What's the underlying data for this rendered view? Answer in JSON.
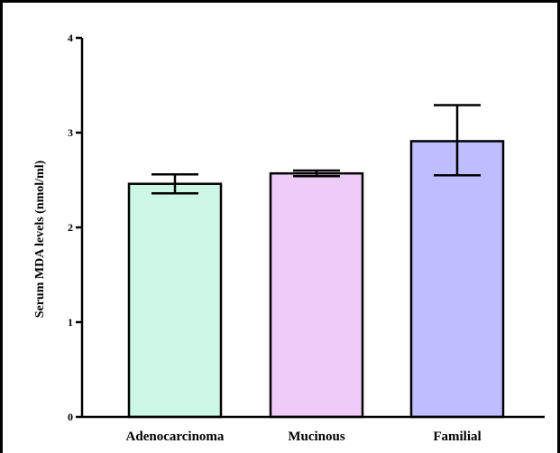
{
  "chart_data": {
    "type": "bar",
    "title": "",
    "xlabel": "",
    "ylabel": "Serum MDA levels (nmol/ml)",
    "ylim": [
      0,
      4
    ],
    "yticks": [
      0,
      1,
      2,
      3,
      4
    ],
    "categories": [
      "Adenocarcinoma",
      "Mucinous",
      "Familial"
    ],
    "values": [
      2.46,
      2.57,
      2.91
    ],
    "error_low": [
      2.36,
      2.54,
      2.55
    ],
    "error_high": [
      2.56,
      2.6,
      3.29
    ],
    "colors": [
      "#ccf7e6",
      "#eeccf7",
      "#bdbdff"
    ],
    "edge_color": "#000000",
    "grid": false,
    "legend": "none"
  }
}
